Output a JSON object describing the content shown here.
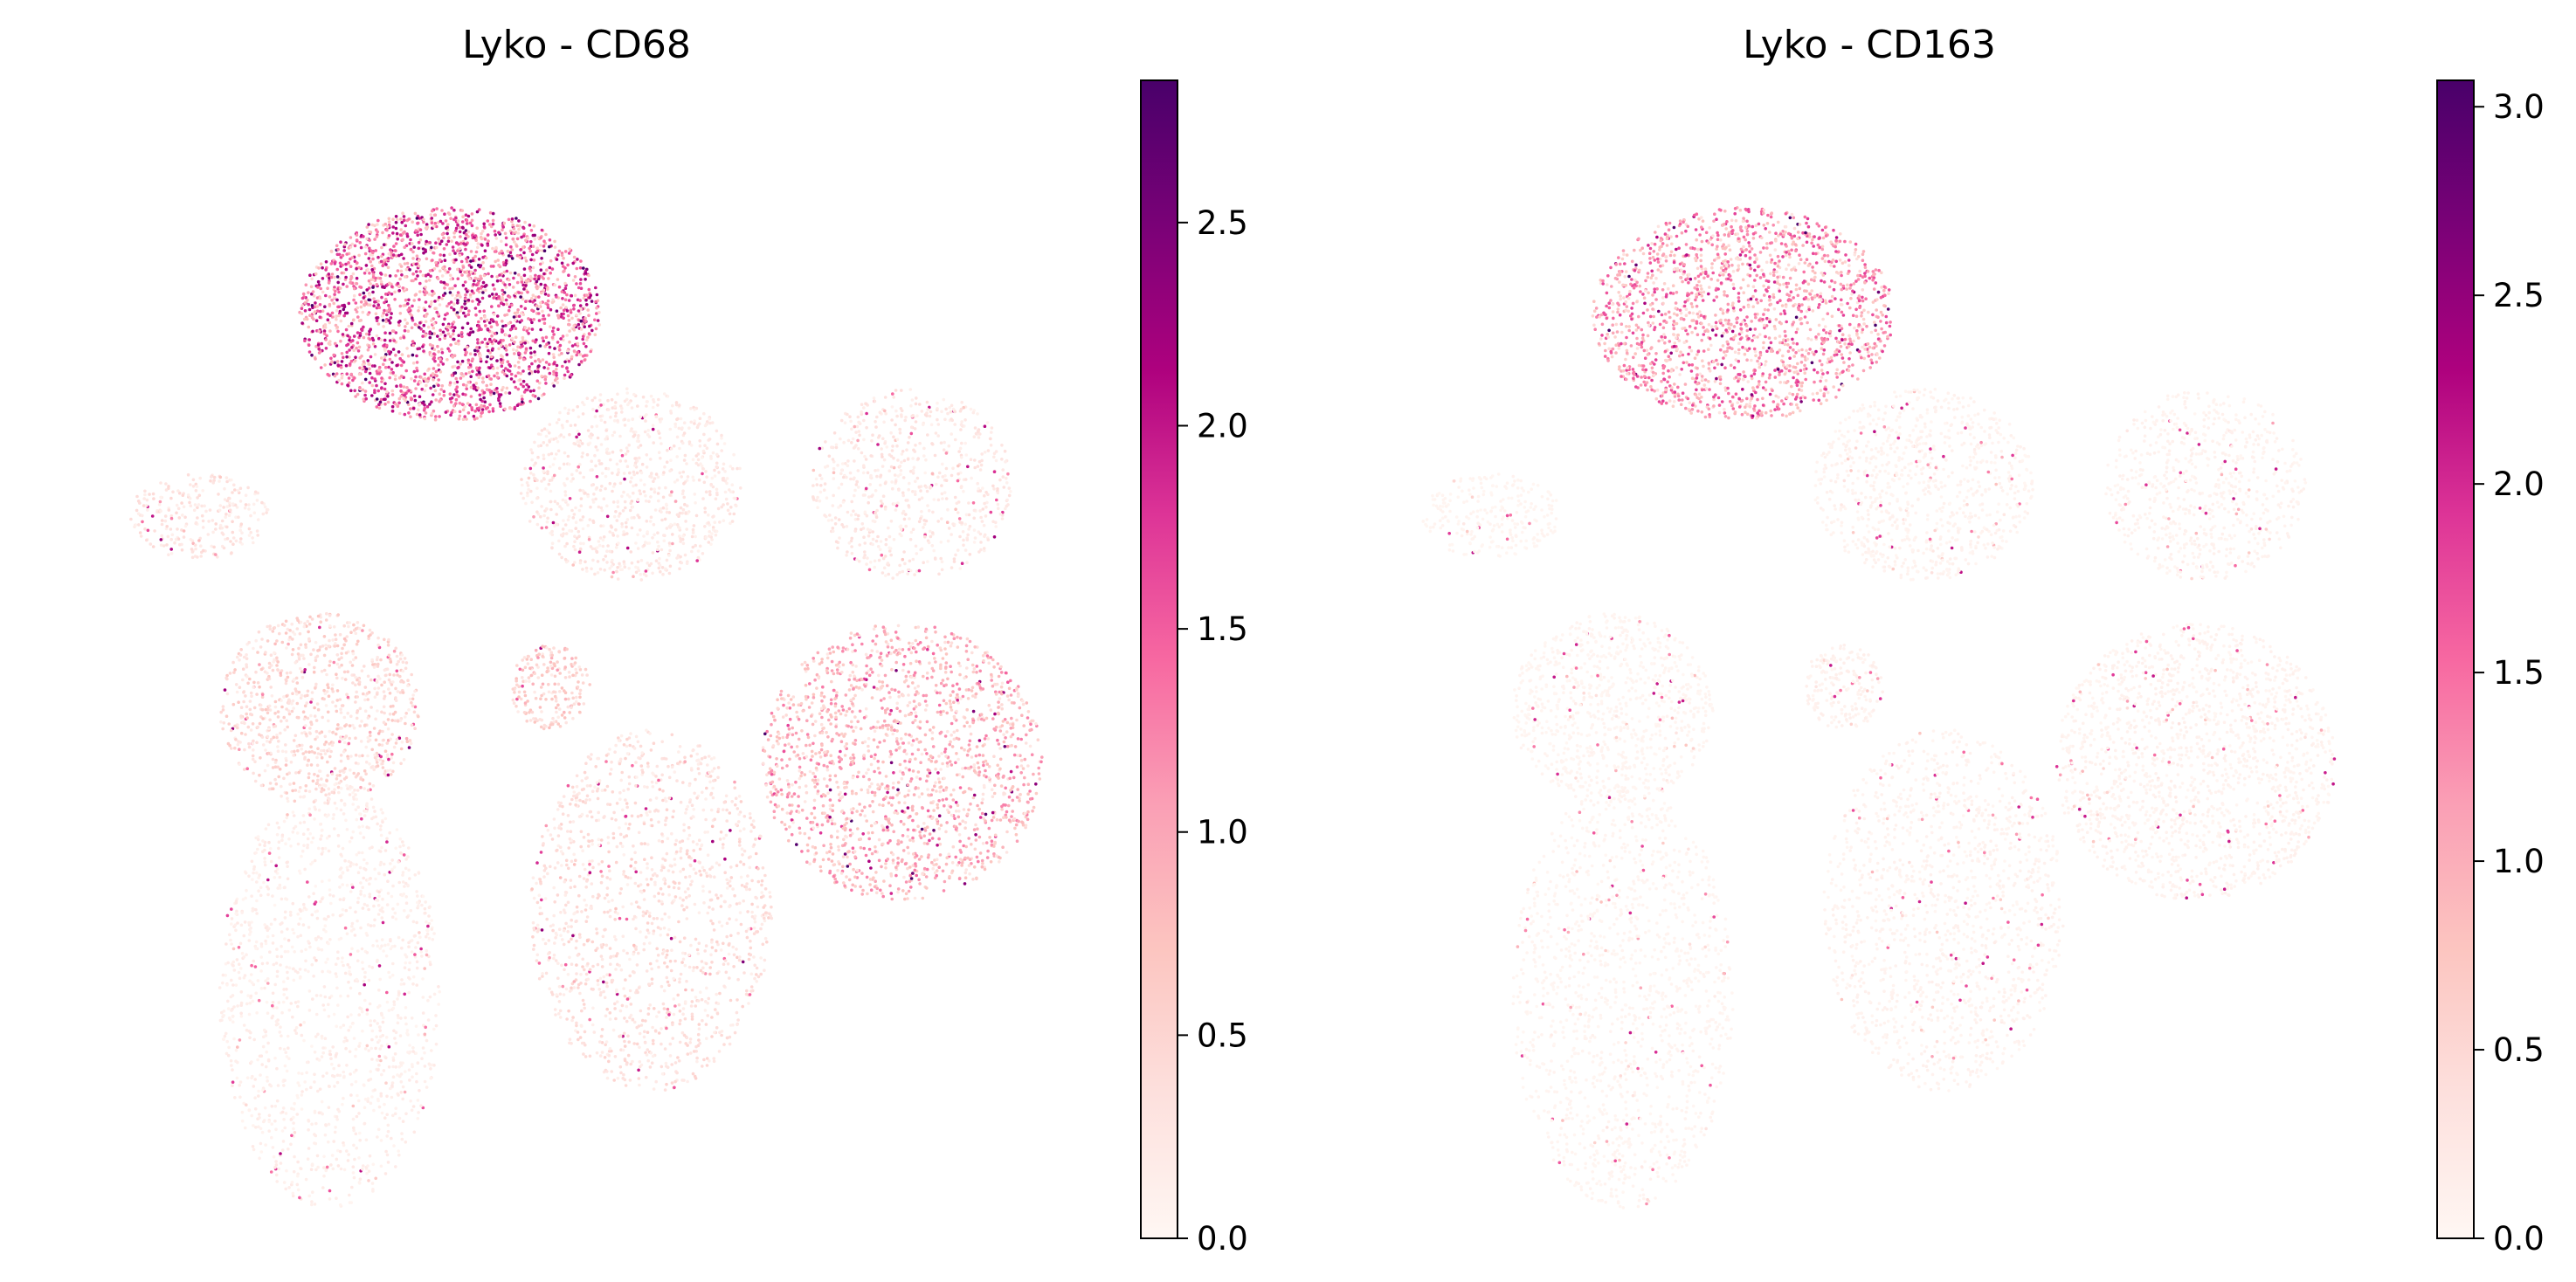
{
  "chart_data": [
    {
      "type": "scatter",
      "title": "Lyko - CD68",
      "xlabel": "",
      "ylabel": "",
      "axes_visible": false,
      "colormap": [
        "#fff7f3",
        "#fde0dd",
        "#fcc5c0",
        "#fa9fb5",
        "#f768a1",
        "#dd3497",
        "#ae017e",
        "#7a0177",
        "#49006a"
      ],
      "colorbar": {
        "vmin": 0.0,
        "vmax": 2.85,
        "ticks": [
          "0.0",
          "0.5",
          "1.0",
          "1.5",
          "2.0",
          "2.5"
        ]
      },
      "clusters": [
        {
          "cx": 0.37,
          "cy": 0.82,
          "rx": 0.15,
          "ry": 0.1,
          "density": 2400,
          "expression": 1.5
        },
        {
          "cx": 0.12,
          "cy": 0.63,
          "rx": 0.07,
          "ry": 0.04,
          "density": 260,
          "expression": 0.3
        },
        {
          "cx": 0.55,
          "cy": 0.66,
          "rx": 0.11,
          "ry": 0.09,
          "density": 900,
          "expression": 0.25
        },
        {
          "cx": 0.83,
          "cy": 0.66,
          "rx": 0.1,
          "ry": 0.09,
          "density": 700,
          "expression": 0.25
        },
        {
          "cx": 0.24,
          "cy": 0.45,
          "rx": 0.1,
          "ry": 0.09,
          "density": 900,
          "expression": 0.45
        },
        {
          "cx": 0.47,
          "cy": 0.47,
          "rx": 0.04,
          "ry": 0.04,
          "density": 200,
          "expression": 0.6
        },
        {
          "cx": 0.82,
          "cy": 0.4,
          "rx": 0.14,
          "ry": 0.13,
          "density": 1700,
          "expression": 0.85
        },
        {
          "cx": 0.57,
          "cy": 0.26,
          "rx": 0.12,
          "ry": 0.17,
          "density": 1400,
          "expression": 0.35
        },
        {
          "cx": 0.25,
          "cy": 0.18,
          "rx": 0.11,
          "ry": 0.2,
          "density": 1400,
          "expression": 0.15
        }
      ]
    },
    {
      "type": "scatter",
      "title": "Lyko - CD163",
      "xlabel": "",
      "ylabel": "",
      "axes_visible": false,
      "colormap": [
        "#fff7f3",
        "#fde0dd",
        "#fcc5c0",
        "#fa9fb5",
        "#f768a1",
        "#dd3497",
        "#ae017e",
        "#7a0177",
        "#49006a"
      ],
      "colorbar": {
        "vmin": 0.0,
        "vmax": 3.07,
        "ticks": [
          "0.0",
          "0.5",
          "1.0",
          "1.5",
          "2.0",
          "2.5",
          "3.0"
        ]
      },
      "clusters": [
        {
          "cx": 0.37,
          "cy": 0.82,
          "rx": 0.15,
          "ry": 0.1,
          "density": 1800,
          "expression": 1.2
        },
        {
          "cx": 0.12,
          "cy": 0.63,
          "rx": 0.07,
          "ry": 0.04,
          "density": 260,
          "expression": 0.05
        },
        {
          "cx": 0.55,
          "cy": 0.66,
          "rx": 0.11,
          "ry": 0.09,
          "density": 900,
          "expression": 0.08
        },
        {
          "cx": 0.83,
          "cy": 0.66,
          "rx": 0.1,
          "ry": 0.09,
          "density": 700,
          "expression": 0.08
        },
        {
          "cx": 0.24,
          "cy": 0.45,
          "rx": 0.1,
          "ry": 0.09,
          "density": 900,
          "expression": 0.05
        },
        {
          "cx": 0.47,
          "cy": 0.47,
          "rx": 0.04,
          "ry": 0.04,
          "density": 200,
          "expression": 0.1
        },
        {
          "cx": 0.82,
          "cy": 0.4,
          "rx": 0.14,
          "ry": 0.13,
          "density": 1700,
          "expression": 0.08
        },
        {
          "cx": 0.57,
          "cy": 0.26,
          "rx": 0.12,
          "ry": 0.17,
          "density": 1400,
          "expression": 0.08
        },
        {
          "cx": 0.25,
          "cy": 0.18,
          "rx": 0.11,
          "ry": 0.2,
          "density": 1400,
          "expression": 0.05
        }
      ]
    }
  ]
}
